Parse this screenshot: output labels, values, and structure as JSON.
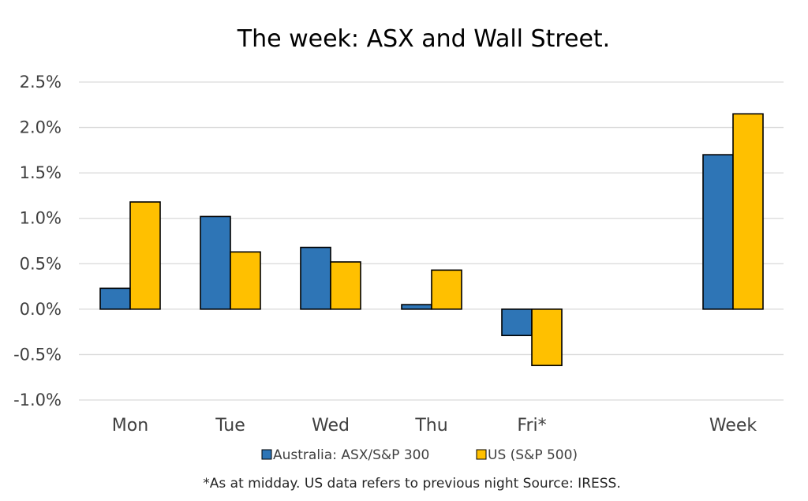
{
  "chart_data": {
    "type": "bar",
    "title": "The week:  ASX and Wall Street.",
    "categories": [
      "Mon",
      "Tue",
      "Wed",
      "Thu",
      "Fri*",
      "Week"
    ],
    "series": [
      {
        "name": "Australia: ASX/S&P 300",
        "color": "#2e75b6",
        "values": [
          0.23,
          1.02,
          0.68,
          0.05,
          -0.29,
          1.7
        ]
      },
      {
        "name": "US (S&P 500)",
        "color": "#ffc000",
        "values": [
          1.18,
          0.63,
          0.52,
          0.43,
          -0.62,
          2.15
        ]
      }
    ],
    "ylim": [
      -1.0,
      2.5
    ],
    "yticks": [
      "2.5%",
      "2.0%",
      "1.5%",
      "1.0%",
      "0.5%",
      "0.0%",
      "-0.5%",
      "-1.0%"
    ],
    "ytick_values": [
      2.5,
      2.0,
      1.5,
      1.0,
      0.5,
      0.0,
      -0.5,
      -1.0
    ],
    "xlabel": "",
    "ylabel": "",
    "grid": true,
    "legend_position": "bottom"
  },
  "footnote": "*As at midday. US data refers to previous night  Source:  IRESS."
}
